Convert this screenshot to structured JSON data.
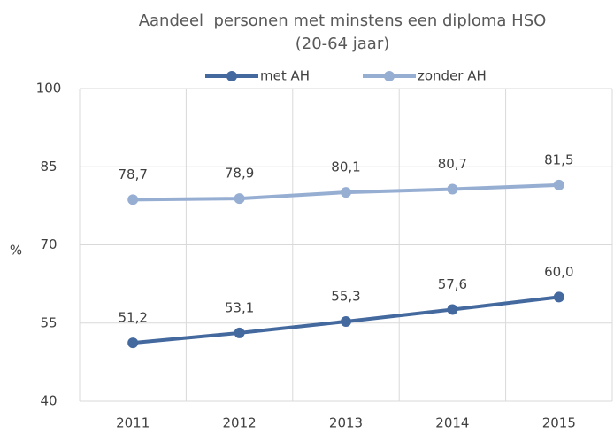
{
  "chart_data": {
    "type": "line",
    "title": "Aandeel  personen met minstens een diploma HSO",
    "subtitle": "(20-64 jaar)",
    "y_label": "%",
    "categories": [
      "2011",
      "2012",
      "2013",
      "2014",
      "2015"
    ],
    "series": [
      {
        "name": "met AH",
        "color": "#44699f",
        "values": [
          51.2,
          53.1,
          55.3,
          57.6,
          60.0
        ],
        "value_labels": [
          "51,2",
          "53,1",
          "55,3",
          "57,6",
          "60,0"
        ]
      },
      {
        "name": "zonder AH",
        "color": "#97aed3",
        "values": [
          78.7,
          78.9,
          80.1,
          80.7,
          81.5
        ],
        "value_labels": [
          "78,7",
          "78,9",
          "80,1",
          "80,7",
          "81,5"
        ]
      }
    ],
    "ylim": [
      40,
      100
    ],
    "yticks": [
      40,
      55,
      70,
      85,
      100
    ],
    "grid": true
  }
}
